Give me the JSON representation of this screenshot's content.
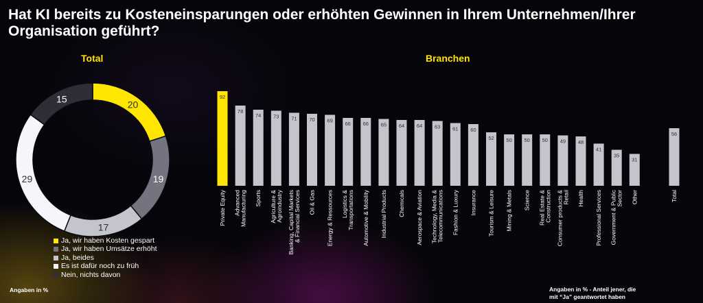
{
  "title": "Hat KI bereits zu Kosteneinsparungen oder erhöhten Gewinnen in Ihrem Unternehmen/Ihrer Organisation geführt?",
  "total_heading": "Total",
  "branchen_heading": "Branchen",
  "footnote_left": "Angaben in %",
  "footnote_right_line1": "Angaben in % - Anteil jener, die",
  "footnote_right_line2": "mit “Ja” geantwortet haben",
  "colors": {
    "accent": "#ffe600",
    "gray": "#747480",
    "light": "#c4c4cd",
    "white": "#f6f6fa",
    "dark": "#2e2e38",
    "bar": "#c4c4cd"
  },
  "chart_data": [
    {
      "type": "pie",
      "title": "Total",
      "slices": [
        {
          "label": "Ja, wir haben Kosten gespart",
          "value": 20,
          "color": "#ffe600",
          "text_color": "#2e2e38"
        },
        {
          "label": "Ja, wir haben Umsätze erhöht",
          "value": 19,
          "color": "#747480",
          "text_color": "#ffffff"
        },
        {
          "label": "Ja, beides",
          "value": 17,
          "color": "#c4c4cd",
          "text_color": "#2e2e38"
        },
        {
          "label": "Es ist dafür noch zu früh",
          "value": 29,
          "color": "#f6f6fa",
          "text_color": "#2e2e38"
        },
        {
          "label": "Nein, nichts davon",
          "value": 15,
          "color": "#2e2e38",
          "text_color": "#ffffff"
        }
      ]
    },
    {
      "type": "bar",
      "title": "Branchen",
      "ylim": [
        0,
        100
      ],
      "categories": [
        [
          "Private Equity"
        ],
        [
          "Advanced",
          "Manufacturing"
        ],
        [
          "Sports"
        ],
        [
          "Agriculture &",
          "Agroindustry"
        ],
        [
          "Banking, Capital Markets",
          "& Financial Services"
        ],
        [
          "Oil & Gas"
        ],
        [
          "Energy & Ressources"
        ],
        [
          "Logistics &",
          "Transportations"
        ],
        [
          "Automotive & Mobility"
        ],
        [
          "Industrial Products"
        ],
        [
          "Chemicals"
        ],
        [
          "Aerospace & Aviation"
        ],
        [
          "Technology, Media &",
          "Telecommunications"
        ],
        [
          "Fashion & Luxury"
        ],
        [
          "Insurance"
        ],
        [
          "Tourism & Leisure"
        ],
        [
          "Mining & Metals"
        ],
        [
          "Science"
        ],
        [
          "Real Estate &",
          "Construction"
        ],
        [
          "Consumer products &",
          "Retail"
        ],
        [
          "Health"
        ],
        [
          "Professional Services"
        ],
        [
          "Government & Public",
          "Sector"
        ],
        [
          "Other"
        ],
        [
          "Total"
        ]
      ],
      "values": [
        92,
        78,
        74,
        73,
        71,
        70,
        69,
        66,
        66,
        65,
        64,
        64,
        63,
        61,
        60,
        52,
        50,
        50,
        50,
        49,
        48,
        41,
        35,
        31,
        56
      ],
      "highlight_index": 0
    }
  ]
}
